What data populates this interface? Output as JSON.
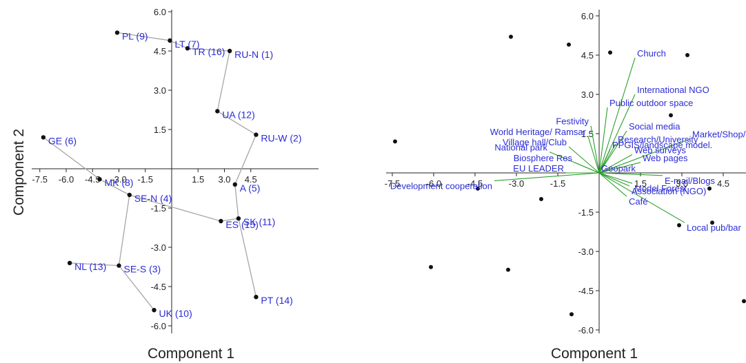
{
  "chart_data": [
    {
      "type": "scatter",
      "xlabel": "Component 1",
      "ylabel": "Component 2",
      "xlim": [
        -8.0,
        6.6
      ],
      "ylim": [
        -6.2,
        6.2
      ],
      "xticks": [
        "-7.5",
        "-6.0",
        "-4.5",
        "-3.0",
        "-1.5",
        "1.5",
        "3.0",
        "4.5"
      ],
      "yticks": [
        "6.0",
        "4.5",
        "3.0",
        "1.5",
        "-1.5",
        "-3.0",
        "-4.5",
        "-6.0"
      ],
      "grid": false,
      "colors": {
        "points": "#111111",
        "labels": "#2b2bd6",
        "links": "#a6a6a6",
        "axes": "#222222"
      },
      "points": [
        {
          "label": "PL (9)",
          "x": -3.1,
          "y": 5.2
        },
        {
          "label": "LT (7)",
          "x": -0.1,
          "y": 4.9
        },
        {
          "label": "TR (16)",
          "x": 0.9,
          "y": 4.6
        },
        {
          "label": "RU-N (1)",
          "x": 3.3,
          "y": 4.5
        },
        {
          "label": "UA (12)",
          "x": 2.6,
          "y": 2.2
        },
        {
          "label": "RU-W (2)",
          "x": 4.8,
          "y": 1.3
        },
        {
          "label": "GE (6)",
          "x": -7.3,
          "y": 1.2
        },
        {
          "label": "MK (8)",
          "x": -4.1,
          "y": -0.4
        },
        {
          "label": "A (5)",
          "x": 3.6,
          "y": -0.6
        },
        {
          "label": "SE-N (4)",
          "x": -2.4,
          "y": -1.0
        },
        {
          "label": "ES (15)",
          "x": 2.8,
          "y": -2.0
        },
        {
          "label": "SK (11)",
          "x": 3.8,
          "y": -1.9
        },
        {
          "label": "NL (13)",
          "x": -5.8,
          "y": -3.6
        },
        {
          "label": "SE-S (3)",
          "x": -3.0,
          "y": -3.7
        },
        {
          "label": "PT (14)",
          "x": 4.8,
          "y": -4.9
        },
        {
          "label": "UK (10)",
          "x": -1.0,
          "y": -5.4
        }
      ],
      "links": [
        [
          "PL (9)",
          "LT (7)"
        ],
        [
          "LT (7)",
          "TR (16)"
        ],
        [
          "TR (16)",
          "RU-N (1)"
        ],
        [
          "RU-N (1)",
          "UA (12)"
        ],
        [
          "UA (12)",
          "RU-W (2)"
        ],
        [
          "RU-W (2)",
          "A (5)"
        ],
        [
          "A (5)",
          "SK (11)"
        ],
        [
          "SK (11)",
          "PT (14)"
        ],
        [
          "SK (11)",
          "ES (15)"
        ],
        [
          "ES (15)",
          "SE-N (4)"
        ],
        [
          "SE-N (4)",
          "MK (8)"
        ],
        [
          "MK (8)",
          "GE (6)"
        ],
        [
          "SE-N (4)",
          "SE-S (3)"
        ],
        [
          "SE-S (3)",
          "NL (13)"
        ],
        [
          "SE-S (3)",
          "UK (10)"
        ]
      ]
    },
    {
      "type": "scatter",
      "xlabel": "Component 1",
      "ylabel": "",
      "xlim": [
        -8.0,
        5.4
      ],
      "ylim": [
        -6.2,
        6.2
      ],
      "xticks": [
        "-7.5",
        "-6.0",
        "-4.5",
        "-3.0",
        "-1.5",
        "1.5",
        "3.0",
        "4.5"
      ],
      "yticks": [
        "6.0",
        "4.5",
        "3.0",
        "1.5",
        "-1.5",
        "-3.0",
        "-4.5",
        "-6.0"
      ],
      "grid": false,
      "colors": {
        "points": "#111111",
        "labels": "#2b2bd6",
        "vectors": "#2ca02c",
        "axes": "#222222"
      },
      "points": [
        {
          "x": -3.2,
          "y": 5.2
        },
        {
          "x": -1.1,
          "y": 4.9
        },
        {
          "x": 0.4,
          "y": 4.6
        },
        {
          "x": 3.2,
          "y": 4.5
        },
        {
          "x": 2.6,
          "y": 2.2
        },
        {
          "x": -7.4,
          "y": 1.2
        },
        {
          "x": -4.4,
          "y": -0.6
        },
        {
          "x": 4.0,
          "y": -0.6
        },
        {
          "x": -2.1,
          "y": -1.0
        },
        {
          "x": 2.9,
          "y": -2.0
        },
        {
          "x": 4.1,
          "y": -1.9
        },
        {
          "x": -6.1,
          "y": -3.6
        },
        {
          "x": -3.3,
          "y": -3.7
        },
        {
          "x": 5.4,
          "y": -4.9
        },
        {
          "x": -1.0,
          "y": -5.4
        }
      ],
      "vectors": [
        {
          "label": "Church",
          "x": 1.3,
          "y": 4.4
        },
        {
          "label": "International NGO",
          "x": 1.3,
          "y": 3.0
        },
        {
          "label": "Public outdoor space",
          "x": 0.3,
          "y": 2.5
        },
        {
          "label": "Festivity",
          "x": -0.3,
          "y": 1.8
        },
        {
          "label": "Social media",
          "x": 1.0,
          "y": 1.6
        },
        {
          "label": "Market/Shop/",
          "x": 3.3,
          "y": 1.3
        },
        {
          "label": "World Heritage/ Ramsar",
          "x": -0.4,
          "y": 1.4
        },
        {
          "label": "Village hall/Club",
          "x": -1.1,
          "y": 1.0
        },
        {
          "label": "Research/University",
          "x": 0.6,
          "y": 1.1
        },
        {
          "label": "PPGIS/landscape model.",
          "x": 0.4,
          "y": 0.9
        },
        {
          "label": "National park",
          "x": -1.8,
          "y": 0.8
        },
        {
          "label": "Web surveys",
          "x": 1.2,
          "y": 0.7
        },
        {
          "label": "Biosphere Res",
          "x": -0.9,
          "y": 0.4
        },
        {
          "label": "Web pages",
          "x": 1.5,
          "y": 0.4
        },
        {
          "label": "EU LEADER",
          "x": -1.2,
          "y": 0.0
        },
        {
          "label": "Geopark",
          "x": 0.0,
          "y": 0.0
        },
        {
          "label": "E-mail/Blogs",
          "x": 2.3,
          "y": -0.1
        },
        {
          "label": "Development cooperation",
          "x": -3.8,
          "y": -0.3
        },
        {
          "label": "Model Forest",
          "x": 1.2,
          "y": -0.4
        },
        {
          "label": "Association (NGO)",
          "x": 1.1,
          "y": -0.5
        },
        {
          "label": "Café",
          "x": 1.0,
          "y": -0.9
        },
        {
          "label": "Local pub/bar",
          "x": 3.1,
          "y": -1.9
        }
      ]
    }
  ]
}
